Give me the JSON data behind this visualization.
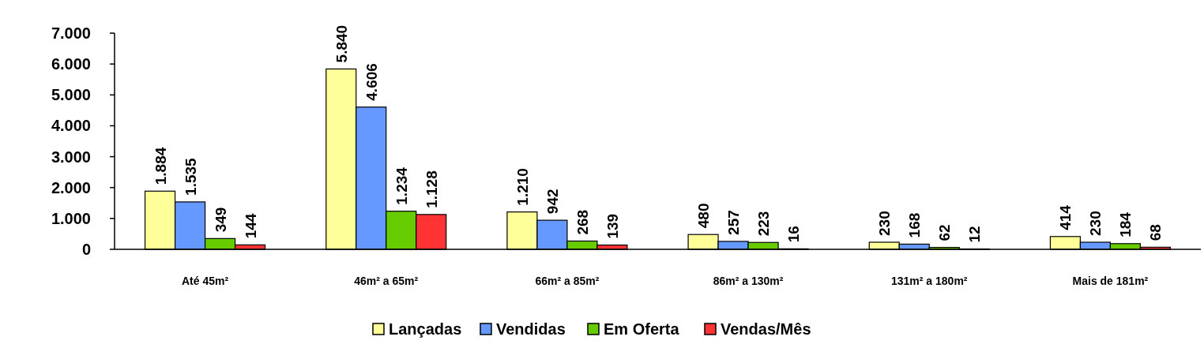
{
  "chart_data": {
    "type": "bar",
    "categories": [
      "Até 45m²",
      "46m² a 65m²",
      "66m² a 85m²",
      "86m² a 130m²",
      "131m² a 180m²",
      "Mais de 181m²"
    ],
    "series": [
      {
        "name": "Lançadas",
        "color": "#ffff99",
        "values": [
          1884,
          5840,
          1210,
          480,
          230,
          414
        ],
        "value_labels": [
          "1.884",
          "5.840",
          "1.210",
          "480",
          "230",
          "414"
        ]
      },
      {
        "name": "Vendidas",
        "color": "#6699ff",
        "values": [
          1535,
          4606,
          942,
          257,
          168,
          230
        ],
        "value_labels": [
          "1.535",
          "4.606",
          "942",
          "257",
          "168",
          "230"
        ]
      },
      {
        "name": "Em Oferta",
        "color": "#66cc00",
        "values": [
          349,
          1234,
          268,
          223,
          62,
          184
        ],
        "value_labels": [
          "349",
          "1.234",
          "268",
          "223",
          "62",
          "184"
        ]
      },
      {
        "name": "Vendas/Mês",
        "color": "#ff3333",
        "values": [
          144,
          1128,
          139,
          16,
          12,
          68
        ],
        "value_labels": [
          "144",
          "1.128",
          "139",
          "16",
          "12",
          "68"
        ]
      }
    ],
    "ylim": [
      0,
      7000
    ],
    "yticks": [
      {
        "value": 0,
        "label": "0"
      },
      {
        "value": 1000,
        "label": "1.000"
      },
      {
        "value": 2000,
        "label": "2.000"
      },
      {
        "value": 3000,
        "label": "3.000"
      },
      {
        "value": 4000,
        "label": "4.000"
      },
      {
        "value": 5000,
        "label": "5.000"
      },
      {
        "value": 6000,
        "label": "6.000"
      },
      {
        "value": 7000,
        "label": "7.000"
      }
    ],
    "legend": "bottom",
    "grid": false
  }
}
